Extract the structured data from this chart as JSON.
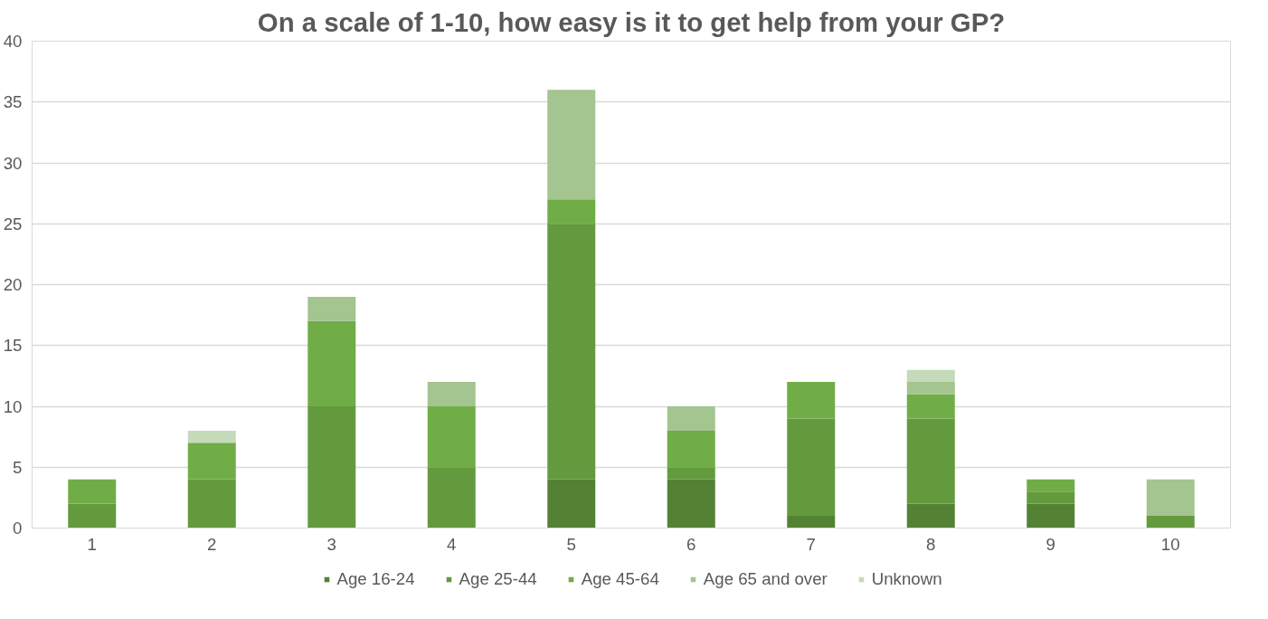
{
  "chart_data": {
    "type": "bar",
    "title": "On a scale of 1-10, how easy is it to get help from your GP?",
    "categories": [
      "1",
      "2",
      "3",
      "4",
      "5",
      "6",
      "7",
      "8",
      "9",
      "10"
    ],
    "stacked": true,
    "series": [
      {
        "name": "Age 16-24",
        "color": "#548235",
        "values": [
          0,
          0,
          0,
          0,
          4,
          4,
          1,
          2,
          2,
          0
        ]
      },
      {
        "name": "Age 25-44",
        "color": "#639a3e",
        "values": [
          2,
          4,
          10,
          5,
          21,
          1,
          8,
          7,
          1,
          1
        ]
      },
      {
        "name": "Age 45-64",
        "color": "#70ad47",
        "values": [
          2,
          3,
          7,
          5,
          2,
          3,
          3,
          2,
          1,
          0
        ]
      },
      {
        "name": "Age 65 and over",
        "color": "#a4c490",
        "values": [
          0,
          0,
          2,
          2,
          9,
          2,
          0,
          1,
          0,
          3
        ]
      },
      {
        "name": "Unknown",
        "color": "#c5dab8",
        "values": [
          0,
          1,
          0,
          0,
          0,
          0,
          0,
          1,
          0,
          0
        ]
      }
    ],
    "ylim": [
      0,
      40
    ],
    "yticks": [
      0,
      5,
      10,
      15,
      20,
      25,
      30,
      35,
      40
    ],
    "grid": "y",
    "legend": "bottom"
  }
}
